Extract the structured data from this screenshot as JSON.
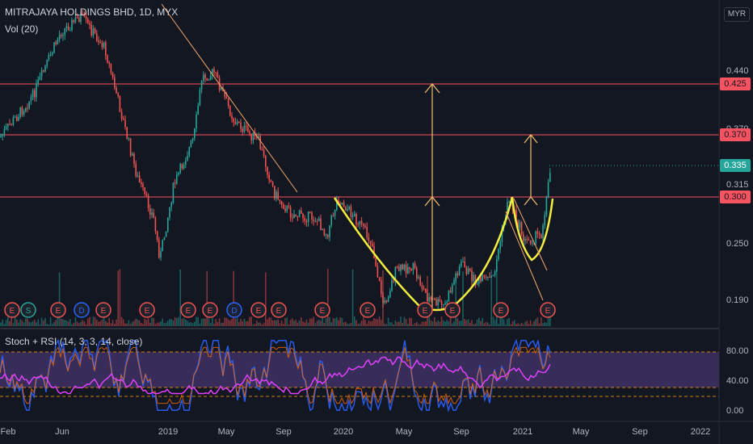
{
  "header": {
    "symbol_line": "MITRAJAYA HOLDINGS BHD, 1D, MYX",
    "volume_label": "Vol (20)",
    "currency": "MYR"
  },
  "indicator": {
    "label": "Stoch + RSI (14, 3, 3, 14, close)"
  },
  "price_axis": {
    "ticks": [
      "0.440",
      "0.370",
      "0.315",
      "0.250",
      "0.190"
    ],
    "badges": [
      {
        "text": "0.425",
        "kind": "level"
      },
      {
        "text": "0.370",
        "kind": "level"
      },
      {
        "text": "0.335",
        "kind": "last"
      },
      {
        "text": "0.300",
        "kind": "level"
      }
    ]
  },
  "oscillator_axis": {
    "ticks": [
      "80.00",
      "40.00",
      "0.00"
    ]
  },
  "time_axis": {
    "labels": [
      "Feb",
      "Jun",
      "2019",
      "May",
      "Sep",
      "2020",
      "May",
      "Sep",
      "2021",
      "May",
      "Sep",
      "2022"
    ]
  },
  "event_markers": [
    "E",
    "S",
    "E",
    "D",
    "E",
    "E",
    "E",
    "E",
    "D",
    "E",
    "E",
    "E",
    "E",
    "E",
    "E",
    "E",
    "E"
  ],
  "colors": {
    "background": "#131722",
    "up": "#26a69a",
    "down": "#ef5350",
    "level_line": "#f7525f",
    "cup_drawing": "#f4ee3f",
    "arrow": "#f2c06b",
    "trendline": "#f2a86b",
    "stoch_k": "#2962ff",
    "rsi": "#e040fb",
    "osc_band": "#7e57c2"
  }
}
